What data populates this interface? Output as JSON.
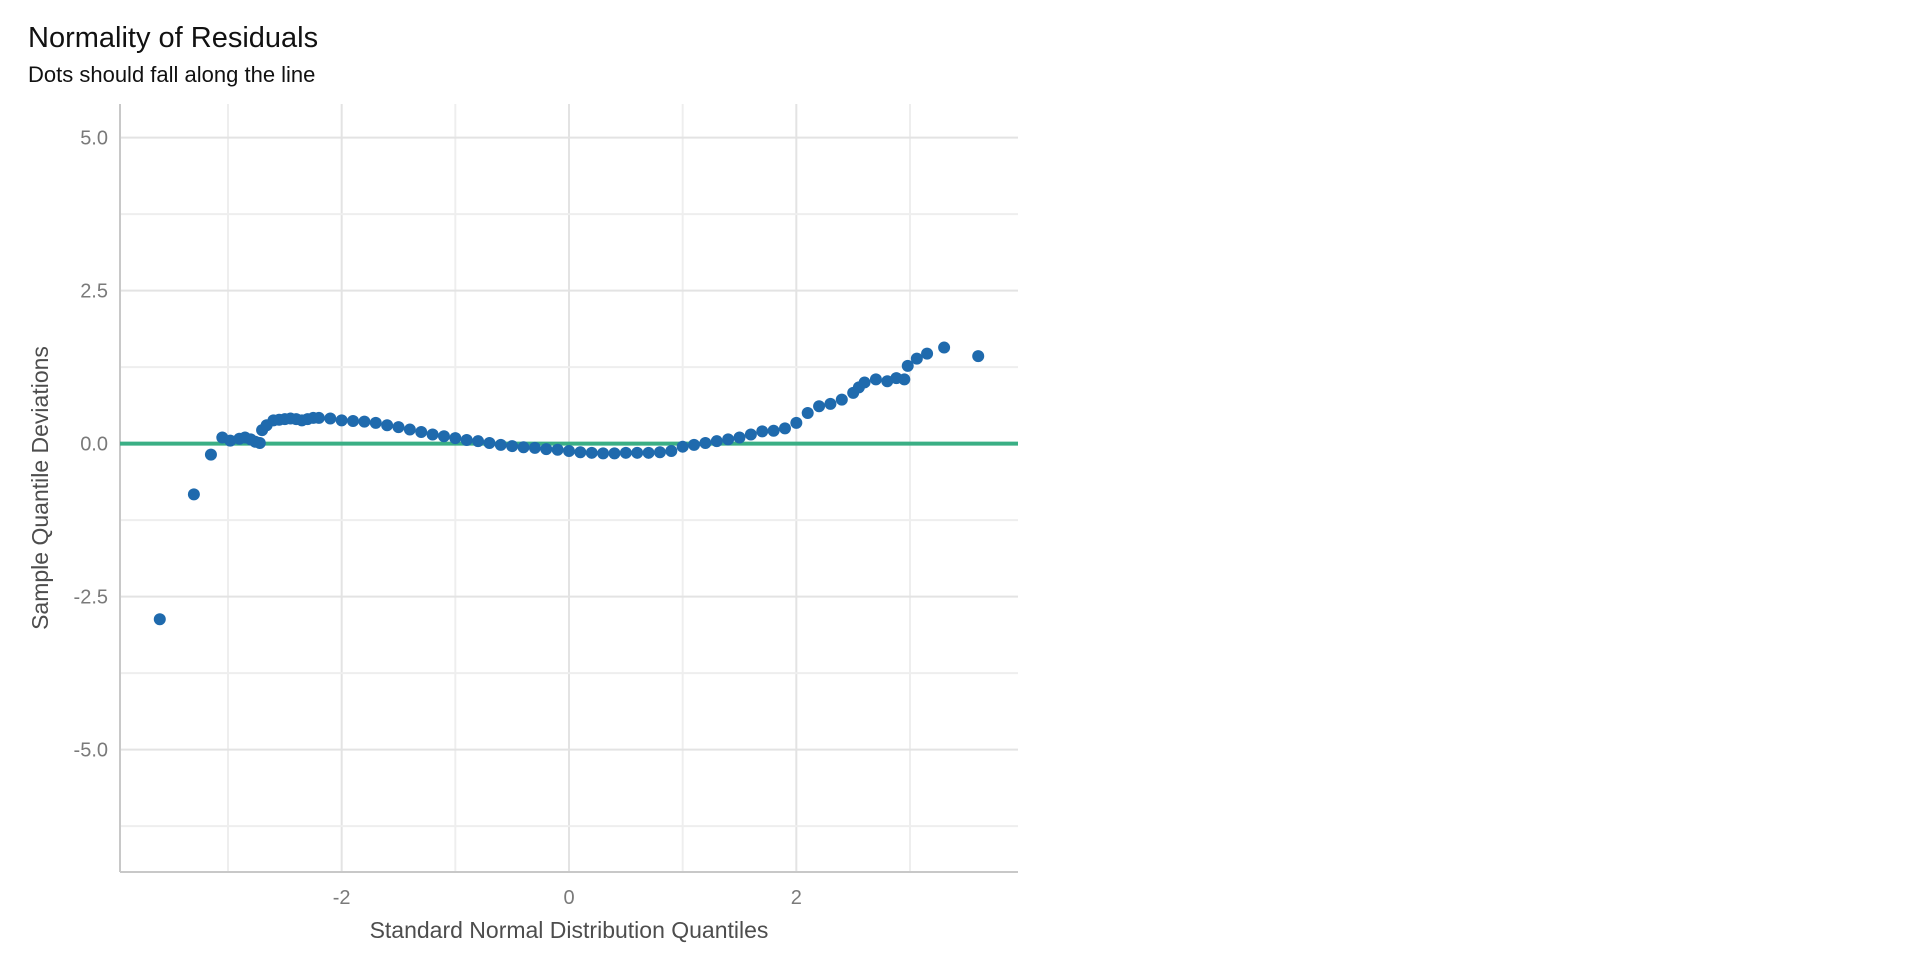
{
  "chart_data": {
    "type": "scatter",
    "title": "Normality of Residuals",
    "subtitle": "Dots should fall along the line",
    "xlabel": "Standard Normal Distribution Quantiles",
    "ylabel": "Sample Quantile Deviations",
    "xlim": [
      -3.95,
      3.95
    ],
    "ylim": [
      -7,
      5.55
    ],
    "x_ticks": [
      -2,
      0,
      2
    ],
    "x_tick_labels": [
      "-2",
      "0",
      "2"
    ],
    "x_minor_gridlines": [
      -3,
      -1,
      1,
      3
    ],
    "y_ticks": [
      5.0,
      2.5,
      0.0,
      -2.5,
      -5.0
    ],
    "y_tick_labels": [
      "5.0",
      "2.5",
      "0.0",
      "-2.5",
      "-5.0"
    ],
    "y_minor_gridlines": [
      3.75,
      1.25,
      -1.25,
      -3.75,
      -6.25
    ],
    "grid": true,
    "legend": "none",
    "reference_line": {
      "y": 0,
      "color": "#3aaf85"
    },
    "point_color": "#1f6aad",
    "background": "#ffffff",
    "series": [
      {
        "points": [
          [
            -3.6,
            -2.87
          ],
          [
            -3.3,
            -0.83
          ],
          [
            -3.15,
            -0.18
          ],
          [
            -3.05,
            0.1
          ],
          [
            -2.98,
            0.05
          ],
          [
            -2.9,
            0.08
          ],
          [
            -2.85,
            0.1
          ],
          [
            -2.8,
            0.07
          ],
          [
            -2.76,
            0.03
          ],
          [
            -2.72,
            0.01
          ],
          [
            -2.7,
            0.22
          ],
          [
            -2.66,
            0.3
          ],
          [
            -2.6,
            0.38
          ],
          [
            -2.55,
            0.39
          ],
          [
            -2.5,
            0.4
          ],
          [
            -2.45,
            0.41
          ],
          [
            -2.4,
            0.4
          ],
          [
            -2.35,
            0.38
          ],
          [
            -2.3,
            0.4
          ],
          [
            -2.25,
            0.42
          ],
          [
            -2.2,
            0.42
          ],
          [
            -2.1,
            0.41
          ],
          [
            -2.0,
            0.38
          ],
          [
            -1.9,
            0.37
          ],
          [
            -1.8,
            0.36
          ],
          [
            -1.7,
            0.34
          ],
          [
            -1.6,
            0.3
          ],
          [
            -1.5,
            0.27
          ],
          [
            -1.4,
            0.23
          ],
          [
            -1.3,
            0.19
          ],
          [
            -1.2,
            0.15
          ],
          [
            -1.1,
            0.12
          ],
          [
            -1.0,
            0.09
          ],
          [
            -0.9,
            0.06
          ],
          [
            -0.8,
            0.04
          ],
          [
            -0.7,
            0.01
          ],
          [
            -0.6,
            -0.02
          ],
          [
            -0.5,
            -0.04
          ],
          [
            -0.4,
            -0.06
          ],
          [
            -0.3,
            -0.07
          ],
          [
            -0.2,
            -0.09
          ],
          [
            -0.1,
            -0.1
          ],
          [
            0.0,
            -0.12
          ],
          [
            0.1,
            -0.14
          ],
          [
            0.2,
            -0.15
          ],
          [
            0.3,
            -0.16
          ],
          [
            0.4,
            -0.16
          ],
          [
            0.5,
            -0.15
          ],
          [
            0.6,
            -0.15
          ],
          [
            0.7,
            -0.15
          ],
          [
            0.8,
            -0.14
          ],
          [
            0.9,
            -0.12
          ],
          [
            1.0,
            -0.05
          ],
          [
            1.1,
            -0.02
          ],
          [
            1.2,
            0.01
          ],
          [
            1.3,
            0.04
          ],
          [
            1.4,
            0.07
          ],
          [
            1.5,
            0.1
          ],
          [
            1.6,
            0.15
          ],
          [
            1.7,
            0.2
          ],
          [
            1.8,
            0.21
          ],
          [
            1.9,
            0.25
          ],
          [
            2.0,
            0.34
          ],
          [
            2.1,
            0.5
          ],
          [
            2.2,
            0.61
          ],
          [
            2.3,
            0.65
          ],
          [
            2.4,
            0.72
          ],
          [
            2.5,
            0.83
          ],
          [
            2.55,
            0.92
          ],
          [
            2.6,
            1.0
          ],
          [
            2.7,
            1.05
          ],
          [
            2.8,
            1.02
          ],
          [
            2.88,
            1.07
          ],
          [
            2.95,
            1.05
          ],
          [
            2.98,
            1.27
          ],
          [
            3.06,
            1.39
          ],
          [
            3.15,
            1.47
          ],
          [
            3.3,
            1.57
          ],
          [
            3.6,
            1.43
          ]
        ]
      }
    ]
  }
}
